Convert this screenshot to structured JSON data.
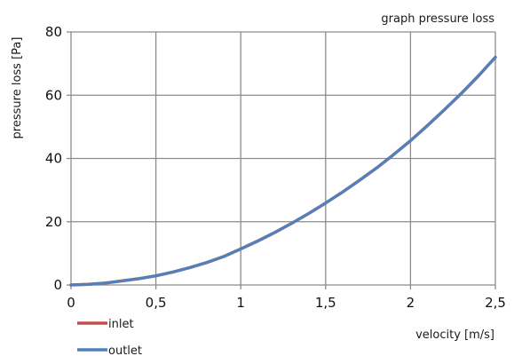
{
  "chart_data": {
    "type": "line",
    "title": "graph pressure loss",
    "xlabel": "velocity [m/s]",
    "ylabel": "pressure loss [Pa]",
    "xlim": [
      0,
      2.5
    ],
    "ylim": [
      0,
      80
    ],
    "x_ticks": [
      0,
      0.5,
      1,
      1.5,
      2,
      2.5
    ],
    "x_tick_labels": [
      "0",
      "0,5",
      "1",
      "1,5",
      "2",
      "2,5"
    ],
    "y_ticks": [
      0,
      20,
      40,
      60,
      80
    ],
    "y_tick_labels": [
      "0",
      "20",
      "40",
      "60",
      "80"
    ],
    "grid": true,
    "legend_position": "bottom-left",
    "series": [
      {
        "name": "inlet",
        "color": "#c0504d",
        "x": [
          0,
          0.1,
          0.2,
          0.3,
          0.4,
          0.5,
          0.6,
          0.7,
          0.8,
          0.9,
          1.0,
          1.1,
          1.2,
          1.3,
          1.4,
          1.5,
          1.6,
          1.7,
          1.8,
          1.9,
          2.0,
          2.1,
          2.2,
          2.3,
          2.4,
          2.5
        ],
        "y": [
          0,
          0.2,
          0.6,
          1.3,
          2.0,
          2.9,
          4.1,
          5.5,
          7.1,
          9.0,
          11.4,
          13.9,
          16.6,
          19.5,
          22.6,
          25.9,
          29.4,
          33.1,
          37.0,
          41.2,
          45.6,
          50.4,
          55.4,
          60.6,
          66.1,
          72.0
        ]
      },
      {
        "name": "outlet",
        "color": "#4f81bd",
        "x": [
          0,
          0.1,
          0.2,
          0.3,
          0.4,
          0.5,
          0.6,
          0.7,
          0.8,
          0.9,
          1.0,
          1.1,
          1.2,
          1.3,
          1.4,
          1.5,
          1.6,
          1.7,
          1.8,
          1.9,
          2.0,
          2.1,
          2.2,
          2.3,
          2.4,
          2.5
        ],
        "y": [
          0,
          0.2,
          0.6,
          1.3,
          2.0,
          2.9,
          4.1,
          5.5,
          7.1,
          9.0,
          11.4,
          13.9,
          16.6,
          19.5,
          22.6,
          25.9,
          29.4,
          33.1,
          37.0,
          41.2,
          45.6,
          50.4,
          55.4,
          60.6,
          66.1,
          72.0
        ]
      }
    ]
  }
}
